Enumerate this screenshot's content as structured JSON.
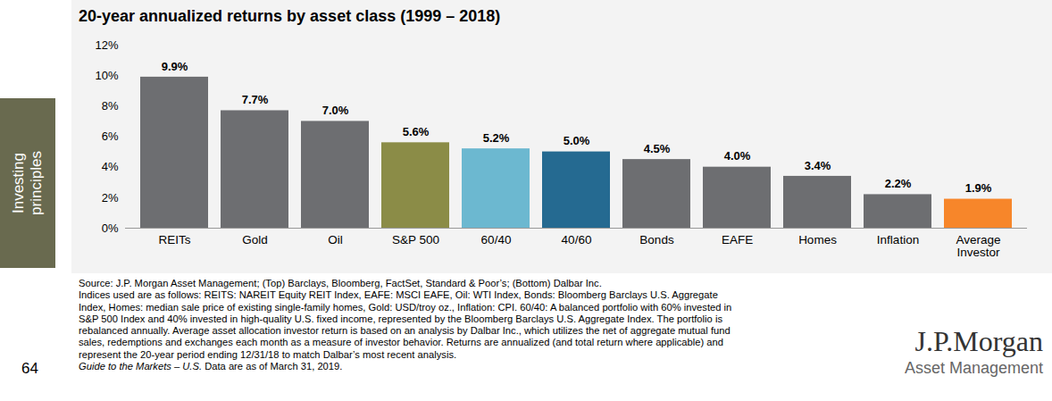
{
  "chart_data": {
    "type": "bar",
    "title": "20-year annualized returns by asset class (1999 – 2018)",
    "categories": [
      "REITs",
      "Gold",
      "Oil",
      "S&P 500",
      "60/40",
      "40/60",
      "Bonds",
      "EAFE",
      "Homes",
      "Inflation",
      "Average Investor"
    ],
    "values": [
      9.9,
      7.7,
      7.0,
      5.6,
      5.2,
      5.0,
      4.5,
      4.0,
      3.4,
      2.2,
      1.9
    ],
    "value_labels": [
      "9.9%",
      "7.7%",
      "7.0%",
      "5.6%",
      "5.2%",
      "5.0%",
      "4.5%",
      "4.0%",
      "3.4%",
      "2.2%",
      "1.9%"
    ],
    "colors": [
      "#6d6e71",
      "#6d6e71",
      "#6d6e71",
      "#8b8c47",
      "#6cb8d0",
      "#256a91",
      "#6d6e71",
      "#6d6e71",
      "#6d6e71",
      "#6d6e71",
      "#f7862a"
    ],
    "ylim": [
      0,
      12
    ],
    "yticks": [
      {
        "value": 0,
        "label": "0%"
      },
      {
        "value": 2,
        "label": "2%"
      },
      {
        "value": 4,
        "label": "4%"
      },
      {
        "value": 6,
        "label": "6%"
      },
      {
        "value": 8,
        "label": "8%"
      },
      {
        "value": 10,
        "label": "10%"
      },
      {
        "value": 12,
        "label": "12%"
      }
    ],
    "grid": false,
    "data_labels": true
  },
  "page": {
    "sidebar": [
      "Investing",
      "principles"
    ],
    "page_number": "64",
    "notes": [
      "Source: J.P. Morgan Asset Management; (Top) Barclays, Bloomberg, FactSet, Standard & Poor’s; (Bottom) Dalbar Inc.",
      "Indices used are as follows: REITS: NAREIT Equity REIT Index, EAFE: MSCI EAFE, Oil: WTI Index, Bonds: Bloomberg Barclays U.S. Aggregate",
      "Index, Homes: median sale price of existing single-family homes, Gold: USD/troy oz., Inflation: CPI. 60/40: A balanced portfolio with 60% invested in",
      "S&P 500 Index and 40% invested in high-quality U.S. fixed income, represented by the Bloomberg Barclays U.S. Aggregate Index. The portfolio is",
      "rebalanced annually. Average asset allocation investor return is based on an analysis by Dalbar Inc., which utilizes the net of aggregate mutual fund",
      "sales, redemptions and exchanges each month as a measure of investor behavior. Returns are annualized (and total return where applicable) and",
      "represent the 20-year period ending 12/31/18 to match Dalbar’s most recent analysis."
    ],
    "last_note": {
      "italic": "Guide to the Markets – U.S.",
      "text": " Data are as of March 31, 2019."
    },
    "logo": [
      "J.P.Morgan",
      "Asset Management"
    ]
  }
}
